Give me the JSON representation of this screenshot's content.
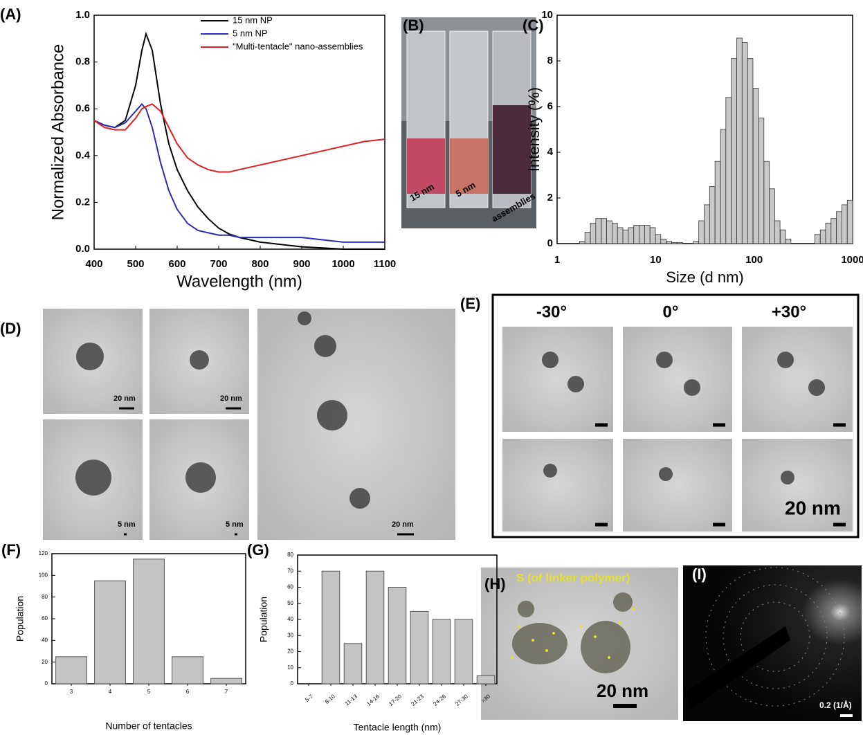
{
  "chart_data": [
    {
      "type": "line",
      "panel": "(A)",
      "xlabel": "Wavelength (nm)",
      "ylabel": "Normalized  Absorbance",
      "x": [
        400,
        425,
        450,
        475,
        500,
        515,
        525,
        540,
        560,
        580,
        600,
        625,
        650,
        675,
        700,
        725,
        750,
        800,
        850,
        900,
        950,
        1000,
        1050,
        1100
      ],
      "series": [
        {
          "name": "15 nm NP",
          "color": "#000000",
          "values": [
            0.55,
            0.53,
            0.52,
            0.55,
            0.7,
            0.85,
            0.92,
            0.85,
            0.62,
            0.45,
            0.34,
            0.25,
            0.18,
            0.13,
            0.09,
            0.065,
            0.05,
            0.03,
            0.02,
            0.01,
            0.005,
            0.0,
            0.0,
            0.0
          ]
        },
        {
          "name": "5 nm NP",
          "color": "#2b2bb8",
          "values": [
            0.55,
            0.53,
            0.52,
            0.54,
            0.59,
            0.62,
            0.6,
            0.52,
            0.37,
            0.25,
            0.17,
            0.11,
            0.08,
            0.07,
            0.06,
            0.06,
            0.05,
            0.05,
            0.05,
            0.05,
            0.04,
            0.03,
            0.03,
            0.03
          ]
        },
        {
          "name": "\"Multi-tentacle\" nano-assemblies",
          "color": "#e02020",
          "values": [
            0.55,
            0.52,
            0.51,
            0.51,
            0.56,
            0.6,
            0.61,
            0.62,
            0.59,
            0.52,
            0.45,
            0.39,
            0.36,
            0.34,
            0.33,
            0.33,
            0.34,
            0.36,
            0.38,
            0.4,
            0.42,
            0.44,
            0.46,
            0.47
          ]
        }
      ],
      "xlim": [
        400,
        1100
      ],
      "xticks": [
        400,
        500,
        600,
        700,
        800,
        900,
        1000,
        1100
      ],
      "ylim": [
        0,
        1.0
      ],
      "yticks": [
        {
          "value": 0,
          "label": "0.0"
        },
        0.2,
        0.4,
        0.6,
        0.8,
        {
          "value": 1,
          "label": "1.0"
        }
      ],
      "legend": "upper right"
    },
    {
      "type": "bar",
      "panel": "(C)",
      "xlabel": "Size (d nm)",
      "ylabel": "Intensity (%)",
      "xscale": "log",
      "color": "#c8c8c8",
      "x": [
        1.8,
        2.04,
        2.32,
        2.63,
        2.99,
        3.39,
        3.85,
        4.37,
        4.96,
        5.63,
        6.39,
        7.25,
        8.23,
        9.34,
        10.6,
        12.0,
        13.7,
        15.5,
        17.6,
        25.7,
        29.2,
        33.2,
        37.6,
        42.7,
        48.5,
        55.0,
        62.5,
        70.9,
        80.5,
        91.3,
        104,
        118,
        134,
        152,
        172,
        196,
        222,
        440,
        500,
        567,
        643,
        730,
        828,
        940
      ],
      "values": [
        0.1,
        0.5,
        0.9,
        1.1,
        1.1,
        1.0,
        0.9,
        0.7,
        0.6,
        0.7,
        0.8,
        0.8,
        0.8,
        0.7,
        0.4,
        0.2,
        0.1,
        0.05,
        0.05,
        0.1,
        1.0,
        1.7,
        2.5,
        3.6,
        5.0,
        6.4,
        8.1,
        9.0,
        8.8,
        8.1,
        6.8,
        5.5,
        3.6,
        2.4,
        1.0,
        0.6,
        0.2,
        0.4,
        0.6,
        0.9,
        1.1,
        1.4,
        1.7,
        1.9
      ],
      "xlim": [
        1,
        1000
      ],
      "xticks": [
        1,
        10,
        100,
        1000
      ],
      "ylim": [
        0,
        10
      ],
      "yticks": [
        0,
        2,
        4,
        6,
        8,
        10
      ]
    },
    {
      "type": "bar",
      "panel": "(F)",
      "xlabel": "Number of tentacles",
      "ylabel": "Population",
      "color": "#c4c4c4",
      "categories": [
        "3",
        "4",
        "5",
        "6",
        "7"
      ],
      "values": [
        25,
        95,
        115,
        25,
        5
      ],
      "ylim": [
        0,
        120
      ],
      "yticks": [
        0,
        20,
        40,
        60,
        80,
        100,
        120
      ]
    },
    {
      "type": "bar",
      "panel": "(G)",
      "xlabel": "Tentacle length (nm)",
      "ylabel": "Population",
      "color": "#c4c4c4",
      "categories": [
        "5-7",
        "8-10",
        "11-13",
        "14-16",
        "17-20",
        "21-23",
        "24-26",
        "27-30",
        ">30"
      ],
      "values": [
        0,
        70,
        25,
        70,
        60,
        45,
        40,
        40,
        5
      ],
      "ylim": [
        0,
        80
      ],
      "yticks": [
        0,
        10,
        20,
        30,
        40,
        50,
        60,
        70,
        80
      ]
    }
  ],
  "images": {
    "B": {
      "label": "(B)",
      "tags": [
        "15 nm",
        "5 nm",
        "assemblies"
      ]
    },
    "D": {
      "label": "(D)",
      "scale_bars": [
        "20 nm",
        "20 nm",
        "5 nm",
        "5 nm",
        "20 nm"
      ]
    },
    "E": {
      "label": "(E)",
      "angles": [
        "-30°",
        "0°",
        "+30°"
      ],
      "scale_bar": "20 nm"
    },
    "H": {
      "label": "(H)",
      "element": "S (of linker polymer)",
      "scale_bar": "20 nm"
    },
    "I": {
      "label": "(I)",
      "scale_bar": "0.2 (1/Å)"
    }
  }
}
